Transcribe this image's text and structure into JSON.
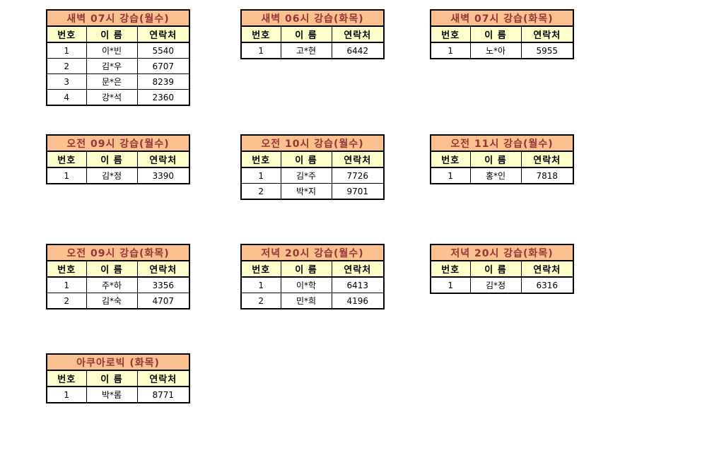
{
  "page": {
    "background": "#FFFFFF"
  },
  "colors": {
    "title_bg": "#FAC090",
    "title_text": "#943634",
    "header_bg": "#FFFFCC",
    "header_text": "#000000",
    "cell_text": "#000000",
    "border": "#000000"
  },
  "column_headers": [
    "번호",
    "이 름",
    "연락처"
  ],
  "tables": [
    {
      "title": "새벽 07시 강습(월수)",
      "rows": [
        [
          "1",
          "이*빈",
          "5540"
        ],
        [
          "2",
          "김*우",
          "6707"
        ],
        [
          "3",
          "문*은",
          "8239"
        ],
        [
          "4",
          "강*석",
          "2360"
        ]
      ]
    },
    {
      "title": "새벽 06시 강습(화목)",
      "rows": [
        [
          "1",
          "고*현",
          "6442"
        ]
      ]
    },
    {
      "title": "새벽 07시 강습(화목)",
      "rows": [
        [
          "1",
          "노*아",
          "5955"
        ]
      ]
    },
    {
      "title": "오전 09시 강습(월수)",
      "rows": [
        [
          "1",
          "김*정",
          "3390"
        ]
      ]
    },
    {
      "title": "오전 10시 강습(월수)",
      "rows": [
        [
          "1",
          "김*주",
          "7726"
        ],
        [
          "2",
          "박*지",
          "9701"
        ]
      ]
    },
    {
      "title": "오전 11시 강습(월수)",
      "rows": [
        [
          "1",
          "홍*인",
          "7818"
        ]
      ]
    },
    {
      "title": "오전 09시 강습(화목)",
      "rows": [
        [
          "1",
          "주*하",
          "3356"
        ],
        [
          "2",
          "김*숙",
          "4707"
        ]
      ]
    },
    {
      "title": "저녁 20시 강습(월수)",
      "rows": [
        [
          "1",
          "이*학",
          "6413"
        ],
        [
          "2",
          "민*희",
          "4196"
        ]
      ]
    },
    {
      "title": "저녁 20시 강습(화목)",
      "rows": [
        [
          "1",
          "김*정",
          "6316"
        ]
      ]
    },
    {
      "title": "아쿠아로빅 (화목)",
      "rows": [
        [
          "1",
          "박*롬",
          "8771"
        ]
      ]
    }
  ]
}
